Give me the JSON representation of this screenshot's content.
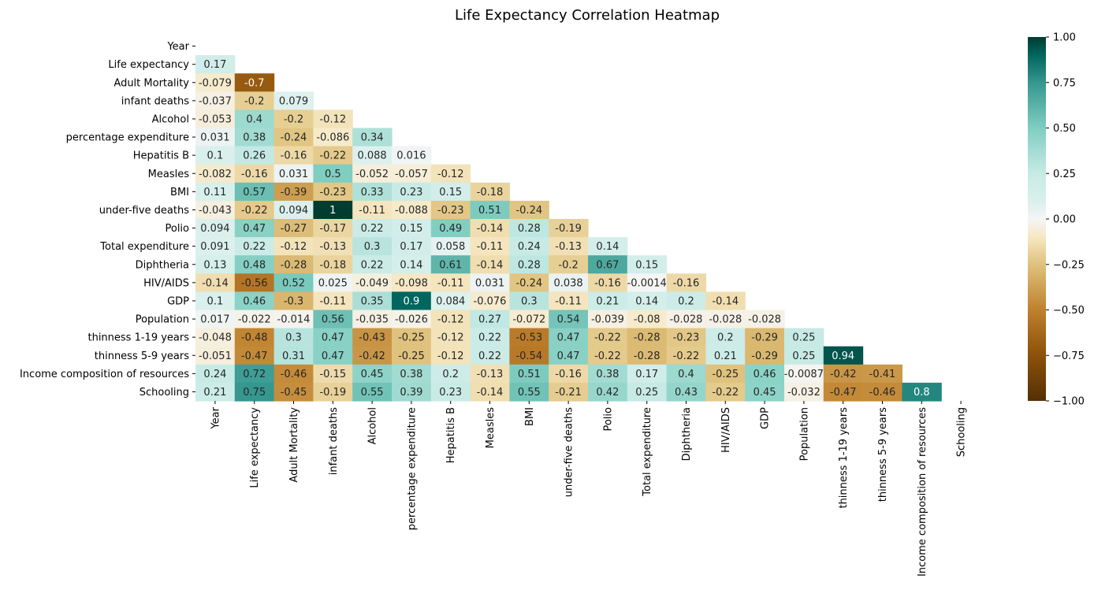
{
  "chart_data": {
    "type": "heatmap",
    "title": "Life Expectancy Correlation Heatmap",
    "variables": [
      "Year",
      "Life expectancy",
      "Adult Mortality",
      "infant deaths",
      "Alcohol",
      "percentage expenditure",
      "Hepatitis B",
      "Measles",
      "BMI",
      "under-five deaths",
      "Polio",
      "Total expenditure",
      "Diphtheria",
      "HIV/AIDS",
      "GDP",
      "Population",
      "thinness 1-19 years",
      "thinness 5-9 years",
      "Income composition of resources",
      "Schooling"
    ],
    "mask": "upper-triangle-including-diagonal",
    "lower_triangle": [
      [],
      [
        "0.17"
      ],
      [
        "-0.079",
        "-0.7"
      ],
      [
        "-0.037",
        "-0.2",
        "0.079"
      ],
      [
        "-0.053",
        "0.4",
        "-0.2",
        "-0.12"
      ],
      [
        "0.031",
        "0.38",
        "-0.24",
        "-0.086",
        "0.34"
      ],
      [
        "0.1",
        "0.26",
        "-0.16",
        "-0.22",
        "0.088",
        "0.016"
      ],
      [
        "-0.082",
        "-0.16",
        "0.031",
        "0.5",
        "-0.052",
        "-0.057",
        "-0.12"
      ],
      [
        "0.11",
        "0.57",
        "-0.39",
        "-0.23",
        "0.33",
        "0.23",
        "0.15",
        "-0.18"
      ],
      [
        "-0.043",
        "-0.22",
        "0.094",
        "1",
        "-0.11",
        "-0.088",
        "-0.23",
        "0.51",
        "-0.24"
      ],
      [
        "0.094",
        "0.47",
        "-0.27",
        "-0.17",
        "0.22",
        "0.15",
        "0.49",
        "-0.14",
        "0.28",
        "-0.19"
      ],
      [
        "0.091",
        "0.22",
        "-0.12",
        "-0.13",
        "0.3",
        "0.17",
        "0.058",
        "-0.11",
        "0.24",
        "-0.13",
        "0.14"
      ],
      [
        "0.13",
        "0.48",
        "-0.28",
        "-0.18",
        "0.22",
        "0.14",
        "0.61",
        "-0.14",
        "0.28",
        "-0.2",
        "0.67",
        "0.15"
      ],
      [
        "-0.14",
        "-0.56",
        "0.52",
        "0.025",
        "-0.049",
        "-0.098",
        "-0.11",
        "0.031",
        "-0.24",
        "0.038",
        "-0.16",
        "-0.0014",
        "-0.16"
      ],
      [
        "0.1",
        "0.46",
        "-0.3",
        "-0.11",
        "0.35",
        "0.9",
        "0.084",
        "-0.076",
        "0.3",
        "-0.11",
        "0.21",
        "0.14",
        "0.2",
        "-0.14"
      ],
      [
        "0.017",
        "-0.022",
        "-0.014",
        "0.56",
        "-0.035",
        "-0.026",
        "-0.12",
        "0.27",
        "-0.072",
        "0.54",
        "-0.039",
        "-0.08",
        "-0.028",
        "-0.028",
        "-0.028"
      ],
      [
        "-0.048",
        "-0.48",
        "0.3",
        "0.47",
        "-0.43",
        "-0.25",
        "-0.12",
        "0.22",
        "-0.53",
        "0.47",
        "-0.22",
        "-0.28",
        "-0.23",
        "0.2",
        "-0.29",
        "0.25"
      ],
      [
        "-0.051",
        "-0.47",
        "0.31",
        "0.47",
        "-0.42",
        "-0.25",
        "-0.12",
        "0.22",
        "-0.54",
        "0.47",
        "-0.22",
        "-0.28",
        "-0.22",
        "0.21",
        "-0.29",
        "0.25",
        "0.94"
      ],
      [
        "0.24",
        "0.72",
        "-0.46",
        "-0.15",
        "0.45",
        "0.38",
        "0.2",
        "-0.13",
        "0.51",
        "-0.16",
        "0.38",
        "0.17",
        "0.4",
        "-0.25",
        "0.46",
        "-0.0087",
        "-0.42",
        "-0.41"
      ],
      [
        "0.21",
        "0.75",
        "-0.45",
        "-0.19",
        "0.55",
        "0.39",
        "0.23",
        "-0.14",
        "0.55",
        "-0.21",
        "0.42",
        "0.25",
        "0.43",
        "-0.22",
        "0.45",
        "-0.032",
        "-0.47",
        "-0.46",
        "0.8"
      ]
    ],
    "colorbar": {
      "range": [
        -1,
        1
      ],
      "ticks": [
        "1.00",
        "0.75",
        "0.50",
        "0.25",
        "0.00",
        "−0.25",
        "−0.50",
        "−0.75",
        "−1.00"
      ],
      "tick_values": [
        1,
        0.75,
        0.5,
        0.25,
        0,
        -0.25,
        -0.5,
        -0.75,
        -1
      ],
      "colormap": "BrBG",
      "stops": [
        [
          -1.0,
          "#543005"
        ],
        [
          -0.75,
          "#8c510a"
        ],
        [
          -0.5,
          "#bf812d"
        ],
        [
          -0.25,
          "#dfc27d"
        ],
        [
          -0.1,
          "#f6e8c3"
        ],
        [
          0.0,
          "#f5f5f5"
        ],
        [
          0.1,
          "#d9f0ec"
        ],
        [
          0.25,
          "#c7eae5"
        ],
        [
          0.5,
          "#80cdc1"
        ],
        [
          0.75,
          "#35978f"
        ],
        [
          0.9,
          "#01665e"
        ],
        [
          1.0,
          "#003c30"
        ]
      ]
    },
    "grid": false
  }
}
